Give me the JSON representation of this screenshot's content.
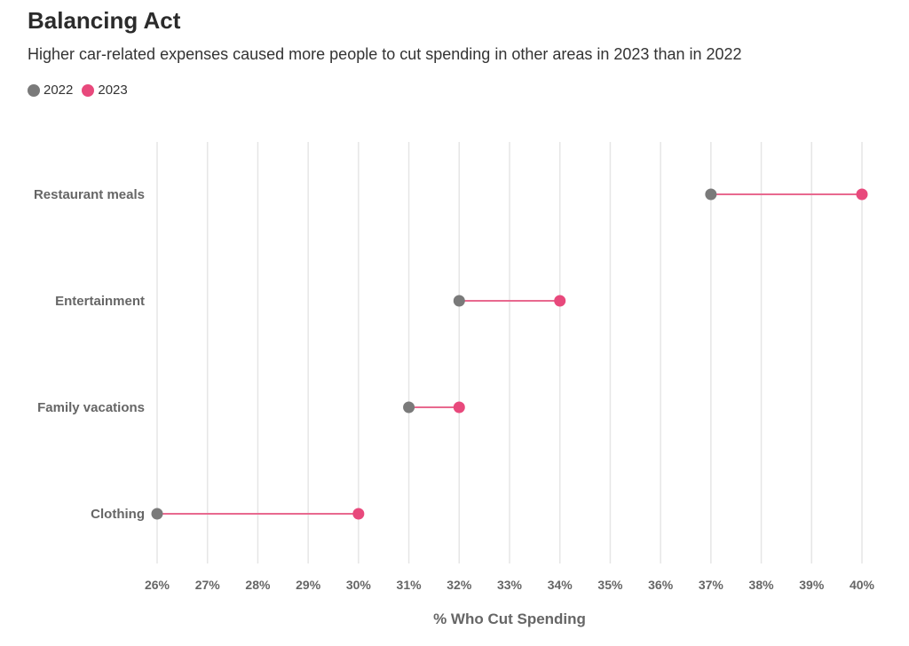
{
  "chart_data": {
    "type": "dot_range",
    "title": "Balancing Act",
    "subtitle": "Higher car-related expenses caused more people to cut spending in other areas in 2023 than in 2022",
    "xlabel": "% Who Cut Spending",
    "ylabel": "",
    "xlim": [
      26,
      40
    ],
    "x_ticks": [
      "26%",
      "27%",
      "28%",
      "29%",
      "30%",
      "31%",
      "32%",
      "33%",
      "34%",
      "35%",
      "36%",
      "37%",
      "38%",
      "39%",
      "40%"
    ],
    "grid": true,
    "legend_position": "top-left",
    "categories": [
      "Restaurant meals",
      "Entertainment",
      "Family vacations",
      "Clothing"
    ],
    "series": [
      {
        "name": "2022",
        "color": "#7a7a7a",
        "values": [
          37,
          32,
          31,
          26
        ]
      },
      {
        "name": "2023",
        "color": "#e8497c",
        "values": [
          40,
          34,
          32,
          30
        ]
      }
    ],
    "connector_color": "#e8698f"
  }
}
